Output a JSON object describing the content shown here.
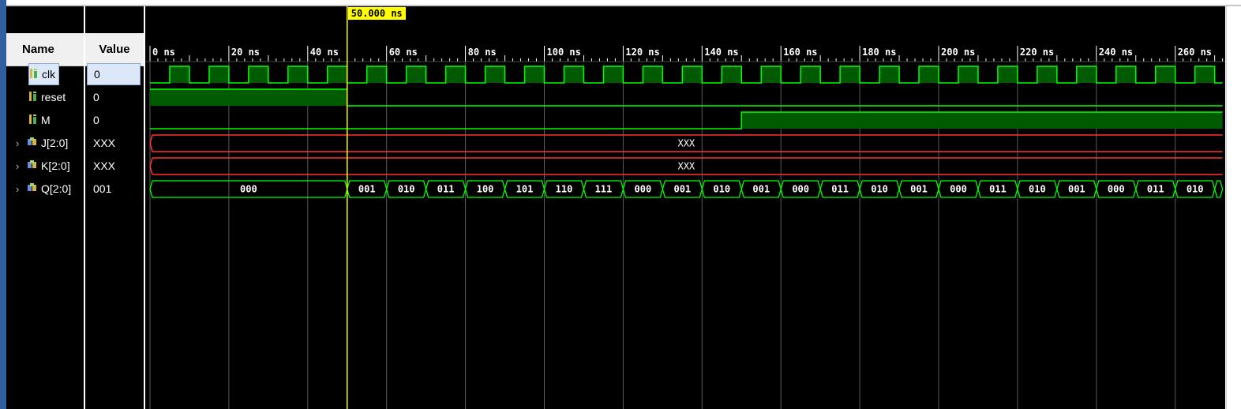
{
  "columns": {
    "name_header": "Name",
    "value_header": "Value"
  },
  "cursor": {
    "time_ns": 50,
    "label": "50.000 ns"
  },
  "time_axis": {
    "start_ns": 0,
    "end_ns": 272,
    "tick_labels": [
      "0 ns",
      "20 ns",
      "40 ns",
      "60 ns",
      "80 ns",
      "100 ns",
      "120 ns",
      "140 ns",
      "160 ns",
      "180 ns",
      "200 ns",
      "220 ns",
      "240 ns",
      "260 ns"
    ]
  },
  "signals": [
    {
      "name": "clk",
      "value": "0",
      "kind": "clock",
      "icon": "scalar-signal-icon",
      "selected": true,
      "period_ns": 10,
      "first_rise_ns": 5
    },
    {
      "name": "reset",
      "value": "0",
      "kind": "bit",
      "icon": "scalar-signal-icon",
      "transitions": [
        [
          0,
          1
        ],
        [
          50,
          0
        ]
      ]
    },
    {
      "name": "M",
      "value": "0",
      "kind": "bit",
      "icon": "scalar-signal-icon",
      "transitions": [
        [
          0,
          0
        ],
        [
          150,
          1
        ]
      ]
    },
    {
      "name": "J[2:0]",
      "value": "XXX",
      "kind": "bus-unknown",
      "icon": "bus-signal-icon",
      "label": "XXX"
    },
    {
      "name": "K[2:0]",
      "value": "XXX",
      "kind": "bus-unknown",
      "icon": "bus-signal-icon",
      "label": "XXX"
    },
    {
      "name": "Q[2:0]",
      "value": "001",
      "kind": "bus",
      "icon": "bus-signal-icon",
      "segments": [
        [
          0,
          "000"
        ],
        [
          50,
          "001"
        ],
        [
          60,
          "010"
        ],
        [
          70,
          "011"
        ],
        [
          80,
          "100"
        ],
        [
          90,
          "101"
        ],
        [
          100,
          "110"
        ],
        [
          110,
          "111"
        ],
        [
          120,
          "000"
        ],
        [
          130,
          "001"
        ],
        [
          140,
          "010"
        ],
        [
          150,
          "001"
        ],
        [
          160,
          "000"
        ],
        [
          170,
          "011"
        ],
        [
          180,
          "010"
        ],
        [
          190,
          "001"
        ],
        [
          200,
          "000"
        ],
        [
          210,
          "011"
        ],
        [
          220,
          "010"
        ],
        [
          230,
          "001"
        ],
        [
          240,
          "000"
        ],
        [
          250,
          "011"
        ],
        [
          260,
          "010"
        ],
        [
          270,
          ""
        ]
      ]
    }
  ],
  "colors": {
    "wave": "#00ff00",
    "wave_fill": "#005a00",
    "unknown": "#ff3030",
    "cursor": "#ffff00",
    "grid": "#5a5a5a",
    "axis": "#ffffff"
  }
}
